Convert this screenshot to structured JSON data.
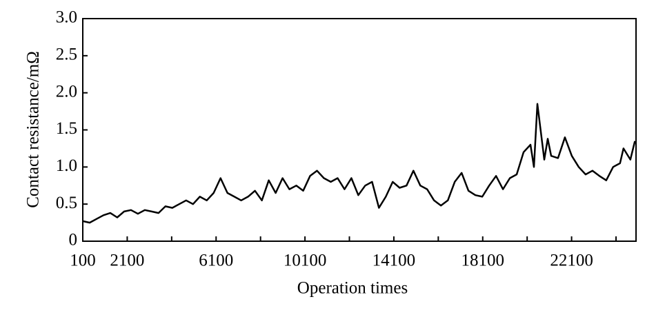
{
  "chart_data": {
    "type": "line",
    "x_label": "Operation times",
    "y_label": "Contact resistance/mΩ",
    "color": "#000000",
    "x": [
      100,
      410,
      720,
      1030,
      1340,
      1650,
      1960,
      2270,
      2580,
      2890,
      3200,
      3510,
      3820,
      4130,
      4440,
      4750,
      5060,
      5370,
      5680,
      5990,
      6300,
      6610,
      6920,
      7230,
      7540,
      7850,
      8160,
      8470,
      8780,
      9090,
      9400,
      9710,
      10020,
      10330,
      10640,
      10950,
      11260,
      11570,
      11880,
      12190,
      12500,
      12810,
      13120,
      13430,
      13740,
      14050,
      14360,
      14670,
      14980,
      15290,
      15600,
      15910,
      16220,
      16530,
      16840,
      17150,
      17460,
      17770,
      18080,
      18390,
      18700,
      19010,
      19320,
      19630,
      19940,
      20250,
      20405,
      20560,
      20870,
      21025,
      21180,
      21490,
      21800,
      22110,
      22420,
      22730,
      23040,
      23350,
      23660,
      23970,
      24280,
      24435,
      24745,
      24950
    ],
    "values": [
      0.27,
      0.25,
      0.3,
      0.35,
      0.38,
      0.32,
      0.4,
      0.42,
      0.37,
      0.42,
      0.4,
      0.38,
      0.47,
      0.45,
      0.5,
      0.55,
      0.5,
      0.6,
      0.55,
      0.65,
      0.85,
      0.65,
      0.6,
      0.55,
      0.6,
      0.68,
      0.55,
      0.82,
      0.65,
      0.85,
      0.7,
      0.75,
      0.68,
      0.88,
      0.95,
      0.85,
      0.8,
      0.85,
      0.7,
      0.85,
      0.62,
      0.75,
      0.8,
      0.45,
      0.6,
      0.8,
      0.72,
      0.75,
      0.95,
      0.75,
      0.7,
      0.55,
      0.48,
      0.55,
      0.8,
      0.92,
      0.68,
      0.62,
      0.6,
      0.75,
      0.88,
      0.7,
      0.85,
      0.9,
      1.2,
      1.3,
      1.0,
      1.85,
      1.1,
      1.38,
      1.15,
      1.12,
      1.4,
      1.15,
      1.0,
      0.9,
      0.95,
      0.88,
      0.82,
      1.0,
      1.05,
      1.25,
      1.1,
      1.35
    ],
    "xlim": [
      100,
      25000
    ],
    "xticks": [
      100,
      2100,
      6100,
      10100,
      14100,
      18100,
      22100
    ],
    "xminorticks": [
      4100,
      8100,
      12100,
      16100,
      20100,
      24100
    ],
    "ylim": [
      0,
      3
    ],
    "yticks": [
      0,
      0.5,
      {
        "value": 1,
        "label": "1.0"
      },
      1.5,
      {
        "value": 2,
        "label": "2.0"
      },
      2.5,
      {
        "value": 3,
        "label": "3.0"
      }
    ]
  }
}
